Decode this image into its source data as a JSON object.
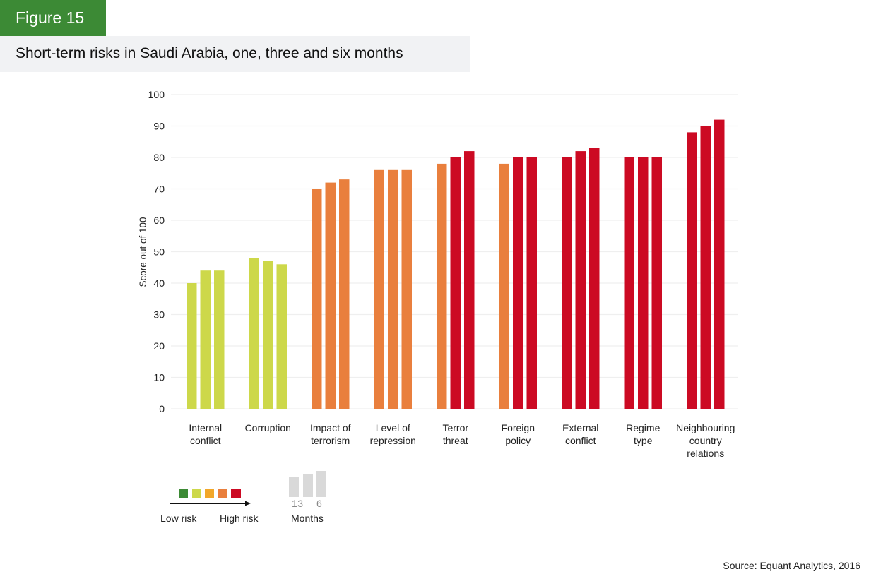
{
  "figure_label": "Figure 15",
  "title": "Short-term risks in Saudi Arabia, one, three and six months",
  "source": "Source: Equant Analytics, 2016",
  "colors": {
    "low": "#3c8a35",
    "low_mid": "#cdd84a",
    "mid": "#f2a72a",
    "mid_high": "#e97f3d",
    "high": "#cc0a23",
    "legend_months": "#d9d9d9"
  },
  "legend": {
    "risk_low_label": "Low risk",
    "risk_high_label": "High risk",
    "months_label": "Months",
    "months_values_a": "13",
    "months_values_b": "6"
  },
  "chart_data": {
    "type": "bar",
    "title": "Short-term risks in Saudi Arabia, one, three and six months",
    "xlabel": "",
    "ylabel": "Score out of 100",
    "ylim": [
      0,
      100
    ],
    "yticks": [
      0,
      10,
      20,
      30,
      40,
      50,
      60,
      70,
      80,
      90,
      100
    ],
    "grid": true,
    "categories": [
      [
        "Internal",
        "conflict"
      ],
      [
        "Corruption"
      ],
      [
        "Impact of",
        "terrorism"
      ],
      [
        "Level of",
        "repression"
      ],
      [
        "Terror",
        "threat"
      ],
      [
        "Foreign",
        "policy"
      ],
      [
        "External",
        "conflict"
      ],
      [
        "Regime",
        "type"
      ],
      [
        "Neighbouring",
        "country",
        "relations"
      ]
    ],
    "series": [
      {
        "name": "1 month",
        "values": [
          40,
          48,
          70,
          76,
          78,
          78,
          80,
          80,
          88
        ],
        "risk_levels": [
          "low_mid",
          "low_mid",
          "mid_high",
          "mid_high",
          "mid_high",
          "mid_high",
          "high",
          "high",
          "high"
        ]
      },
      {
        "name": "3 months",
        "values": [
          44,
          47,
          72,
          76,
          80,
          80,
          82,
          80,
          90
        ],
        "risk_levels": [
          "low_mid",
          "low_mid",
          "mid_high",
          "mid_high",
          "high",
          "high",
          "high",
          "high",
          "high"
        ]
      },
      {
        "name": "6 months",
        "values": [
          44,
          46,
          73,
          76,
          82,
          80,
          83,
          80,
          92
        ],
        "risk_levels": [
          "low_mid",
          "low_mid",
          "mid_high",
          "mid_high",
          "high",
          "high",
          "high",
          "high",
          "high"
        ]
      }
    ]
  }
}
